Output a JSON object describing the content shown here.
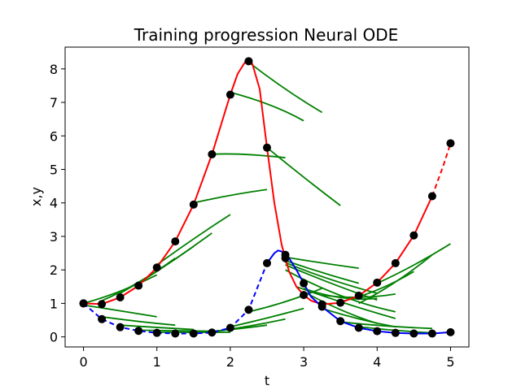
{
  "chart_data": {
    "type": "line",
    "title": "Training progression Neural ODE",
    "xlabel": "t",
    "ylabel": "x,y",
    "xlim": [
      -0.25,
      5.25
    ],
    "ylim": [
      -0.3,
      8.65
    ],
    "xticks": [
      "0",
      "1",
      "2",
      "3",
      "4",
      "5"
    ],
    "yticks": [
      "0",
      "1",
      "2",
      "3",
      "4",
      "5",
      "6",
      "7",
      "8"
    ],
    "grid": false,
    "colors": {
      "x_true": "#ff0000",
      "y_true": "#0000ff",
      "prediction": "#008000",
      "observations": "#000000"
    },
    "series": [
      {
        "style": "solid",
        "color": "#ff0000",
        "x": [
          0,
          0.25,
          0.5,
          0.75,
          1.0,
          1.25,
          1.5,
          1.75,
          2.0,
          2.1,
          2.2,
          2.25,
          2.3,
          2.4,
          2.5,
          2.6,
          2.7,
          2.8,
          2.9,
          3.0,
          3.1,
          3.25,
          3.5,
          3.75,
          4.0,
          4.25,
          4.5,
          4.75
        ],
        "y": [
          1.0,
          0.98,
          1.18,
          1.53,
          2.07,
          2.85,
          3.95,
          5.45,
          7.23,
          7.85,
          8.2,
          8.23,
          8.15,
          7.4,
          5.65,
          4.0,
          2.75,
          1.95,
          1.5,
          1.25,
          1.08,
          0.97,
          1.02,
          1.23,
          1.62,
          2.2,
          3.03,
          4.2
        ]
      },
      {
        "style": "dashed",
        "color": "#ff0000",
        "x": [
          4.75,
          4.9,
          5.0
        ],
        "y": [
          4.2,
          5.1,
          5.78
        ]
      },
      {
        "style": "dashed",
        "color": "#0000ff",
        "x": [
          0,
          0.25,
          0.5,
          0.75,
          1.0,
          1.25,
          1.5,
          1.75,
          2.0,
          2.25,
          2.5
        ],
        "y": [
          1.0,
          0.53,
          0.29,
          0.18,
          0.12,
          0.1,
          0.1,
          0.13,
          0.27,
          0.81,
          2.2
        ]
      },
      {
        "style": "solid",
        "color": "#0000ff",
        "x": [
          2.5,
          2.6,
          2.65,
          2.7,
          2.8,
          2.9,
          3.0,
          3.1,
          3.25,
          3.5,
          3.75,
          4.0,
          4.25,
          4.5,
          4.75,
          5.0
        ],
        "y": [
          2.2,
          2.5,
          2.58,
          2.55,
          2.35,
          2.0,
          1.6,
          1.2,
          0.9,
          0.47,
          0.27,
          0.17,
          0.12,
          0.1,
          0.1,
          0.14
        ]
      }
    ],
    "points": {
      "x": [
        [
          0,
          1.0
        ],
        [
          0.25,
          0.98
        ],
        [
          0.5,
          1.18
        ],
        [
          0.75,
          1.53
        ],
        [
          1.0,
          2.07
        ],
        [
          1.25,
          2.85
        ],
        [
          1.5,
          3.95
        ],
        [
          1.75,
          5.45
        ],
        [
          2.0,
          7.23
        ],
        [
          2.25,
          8.23
        ],
        [
          2.5,
          5.65
        ],
        [
          2.75,
          2.35
        ],
        [
          3.0,
          1.25
        ],
        [
          3.25,
          0.97
        ],
        [
          3.5,
          1.02
        ],
        [
          3.75,
          1.23
        ],
        [
          4.0,
          1.62
        ],
        [
          4.25,
          2.2
        ],
        [
          4.5,
          3.03
        ],
        [
          4.75,
          4.2
        ],
        [
          5.0,
          5.78
        ]
      ],
      "y": [
        [
          0,
          1.0
        ],
        [
          0.25,
          0.53
        ],
        [
          0.5,
          0.29
        ],
        [
          0.75,
          0.18
        ],
        [
          1.0,
          0.12
        ],
        [
          1.25,
          0.1
        ],
        [
          1.5,
          0.1
        ],
        [
          1.75,
          0.13
        ],
        [
          2.0,
          0.27
        ],
        [
          2.25,
          0.81
        ],
        [
          2.5,
          2.2
        ],
        [
          2.75,
          2.45
        ],
        [
          3.0,
          1.6
        ],
        [
          3.25,
          0.9
        ],
        [
          3.5,
          0.47
        ],
        [
          3.75,
          0.27
        ],
        [
          4.0,
          0.17
        ],
        [
          4.25,
          0.12
        ],
        [
          4.5,
          0.1
        ],
        [
          4.75,
          0.1
        ],
        [
          5.0,
          0.14
        ]
      ]
    },
    "prediction_segments": [
      [
        [
          0,
          1.0
        ],
        [
          0.5,
          1.3
        ],
        [
          1.0,
          1.85
        ]
      ],
      [
        [
          0.25,
          1.08
        ],
        [
          0.75,
          1.55
        ],
        [
          1.25,
          2.35
        ]
      ],
      [
        [
          0.5,
          1.3
        ],
        [
          1.0,
          1.92
        ],
        [
          1.5,
          2.7
        ]
      ],
      [
        [
          0.75,
          1.6
        ],
        [
          1.25,
          2.3
        ],
        [
          1.75,
          3.1
        ]
      ],
      [
        [
          1.0,
          2.15
        ],
        [
          1.5,
          2.95
        ],
        [
          2.0,
          3.65
        ]
      ],
      [
        [
          1.5,
          4.0
        ],
        [
          2.0,
          4.25
        ],
        [
          2.5,
          4.4
        ]
      ],
      [
        [
          1.75,
          5.45
        ],
        [
          2.1,
          5.5
        ],
        [
          2.75,
          5.35
        ]
      ],
      [
        [
          2.0,
          7.3
        ],
        [
          2.6,
          6.95
        ],
        [
          3.0,
          6.45
        ]
      ],
      [
        [
          2.25,
          8.2
        ],
        [
          2.75,
          7.35
        ],
        [
          3.25,
          6.7
        ]
      ],
      [
        [
          2.5,
          5.65
        ],
        [
          3.0,
          4.75
        ],
        [
          3.5,
          3.92
        ]
      ],
      [
        [
          2.75,
          2.38
        ],
        [
          3.25,
          2.2
        ],
        [
          3.75,
          2.05
        ]
      ],
      [
        [
          2.75,
          2.28
        ],
        [
          3.25,
          1.9
        ],
        [
          3.75,
          1.6
        ]
      ],
      [
        [
          2.75,
          2.22
        ],
        [
          3.25,
          1.75
        ],
        [
          4.0,
          1.3
        ]
      ],
      [
        [
          2.75,
          2.15
        ],
        [
          3.4,
          1.55
        ],
        [
          4.0,
          1.1
        ]
      ],
      [
        [
          2.75,
          2.0
        ],
        [
          3.5,
          1.1
        ],
        [
          4.25,
          0.75
        ]
      ],
      [
        [
          2.9,
          1.5
        ],
        [
          3.6,
          0.95
        ],
        [
          4.25,
          0.55
        ]
      ],
      [
        [
          3.0,
          1.45
        ],
        [
          3.5,
          1.05
        ],
        [
          4.0,
          1.15
        ]
      ],
      [
        [
          3.25,
          1.25
        ],
        [
          3.75,
          1.1
        ],
        [
          4.25,
          1.28
        ]
      ],
      [
        [
          3.5,
          1.05
        ],
        [
          4.0,
          1.3
        ],
        [
          4.5,
          1.95
        ]
      ],
      [
        [
          4.0,
          1.6
        ],
        [
          4.5,
          2.1
        ],
        [
          5.0,
          2.78
        ]
      ],
      [
        [
          3.75,
          1.0
        ],
        [
          4.25,
          1.55
        ],
        [
          4.75,
          2.45
        ]
      ],
      [
        [
          0,
          0.95
        ],
        [
          0.5,
          0.78
        ],
        [
          1.0,
          0.6
        ]
      ],
      [
        [
          0.25,
          0.6
        ],
        [
          0.75,
          0.45
        ],
        [
          1.25,
          0.35
        ]
      ],
      [
        [
          0.5,
          0.35
        ],
        [
          1.0,
          0.28
        ],
        [
          1.5,
          0.22
        ]
      ],
      [
        [
          0.75,
          0.2
        ],
        [
          1.25,
          0.18
        ],
        [
          1.75,
          0.17
        ]
      ],
      [
        [
          1.0,
          0.14
        ],
        [
          1.5,
          0.13
        ],
        [
          2.0,
          0.14
        ]
      ],
      [
        [
          1.5,
          0.12
        ],
        [
          2.0,
          0.2
        ],
        [
          2.5,
          0.35
        ]
      ],
      [
        [
          1.75,
          0.15
        ],
        [
          2.25,
          0.3
        ],
        [
          2.75,
          0.53
        ]
      ],
      [
        [
          2.0,
          0.3
        ],
        [
          2.5,
          0.55
        ],
        [
          3.0,
          0.85
        ]
      ],
      [
        [
          2.25,
          0.75
        ],
        [
          2.75,
          1.0
        ],
        [
          3.25,
          1.45
        ]
      ],
      [
        [
          3.0,
          1.35
        ],
        [
          3.5,
          0.75
        ],
        [
          4.0,
          0.4
        ]
      ],
      [
        [
          3.25,
          0.85
        ],
        [
          3.75,
          0.5
        ],
        [
          4.25,
          0.3
        ]
      ],
      [
        [
          3.5,
          0.45
        ],
        [
          4.0,
          0.32
        ],
        [
          4.75,
          0.25
        ]
      ],
      [
        [
          3.75,
          0.3
        ],
        [
          4.25,
          0.18
        ],
        [
          4.75,
          0.12
        ]
      ]
    ]
  }
}
